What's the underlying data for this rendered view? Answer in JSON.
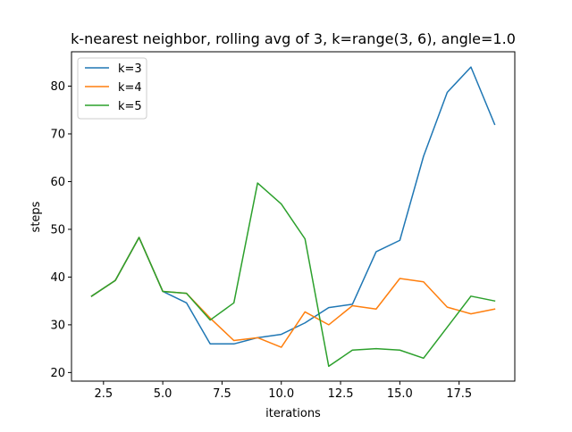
{
  "chart_data": {
    "type": "line",
    "title": "k-nearest neighbor, rolling avg of 3, k=range(3, 6), angle=1.0",
    "xlabel": "iterations",
    "ylabel": "steps",
    "xlim": [
      1.15,
      19.85
    ],
    "ylim": [
      18.2,
      87.2
    ],
    "xticks": [
      2.5,
      5.0,
      7.5,
      10.0,
      12.5,
      15.0,
      17.5
    ],
    "xtick_labels": [
      "2.5",
      "5.0",
      "7.5",
      "10.0",
      "12.5",
      "15.0",
      "17.5"
    ],
    "yticks": [
      20,
      30,
      40,
      50,
      60,
      70,
      80
    ],
    "ytick_labels": [
      "20",
      "30",
      "40",
      "50",
      "60",
      "70",
      "80"
    ],
    "grid": false,
    "legend_position": "upper-left",
    "x": [
      2,
      3,
      4,
      5,
      6,
      7,
      8,
      9,
      10,
      11,
      12,
      13,
      14,
      15,
      16,
      17,
      18,
      19
    ],
    "series": [
      {
        "name": "k=3",
        "color": "#1f77b4",
        "values": [
          36.0,
          39.3,
          48.3,
          37.0,
          34.6,
          26.0,
          26.0,
          27.3,
          28.0,
          30.4,
          33.6,
          34.3,
          45.3,
          47.7,
          65.3,
          78.7,
          84.0,
          72.0
        ]
      },
      {
        "name": "k=4",
        "color": "#ff7f0e",
        "values": [
          36.0,
          39.3,
          48.3,
          37.0,
          36.6,
          31.4,
          26.7,
          27.3,
          25.3,
          32.7,
          30.0,
          34.0,
          33.3,
          39.7,
          39.0,
          33.7,
          32.3,
          33.3
        ]
      },
      {
        "name": "k=5",
        "color": "#2ca02c",
        "values": [
          36.0,
          39.3,
          48.3,
          37.0,
          36.6,
          31.0,
          34.6,
          59.7,
          55.3,
          48.0,
          21.3,
          24.7,
          25.0,
          24.7,
          23.0,
          29.5,
          36.0,
          35.0
        ]
      }
    ]
  }
}
